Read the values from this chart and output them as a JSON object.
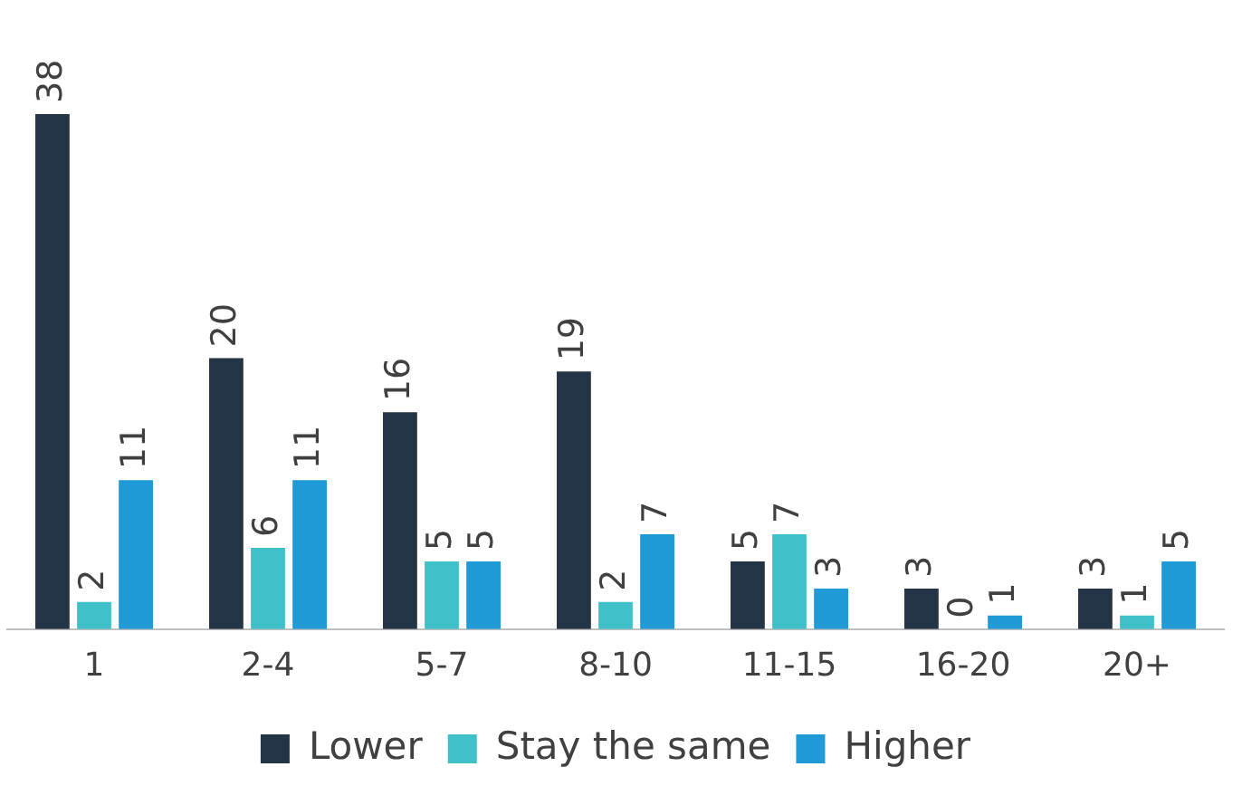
{
  "chart_data": {
    "type": "bar",
    "categories": [
      "1",
      "2-4",
      "5-7",
      "8-10",
      "11-15",
      "16-20",
      "20+"
    ],
    "series": [
      {
        "name": "Lower",
        "color": "#243447",
        "values": [
          38,
          20,
          16,
          19,
          5,
          3,
          3
        ]
      },
      {
        "name": "Stay the same",
        "color": "#40c0c8",
        "values": [
          2,
          6,
          5,
          2,
          7,
          0,
          1
        ]
      },
      {
        "name": "Higher",
        "color": "#1f9ad6",
        "values": [
          11,
          11,
          5,
          7,
          3,
          1,
          5
        ]
      }
    ],
    "data_labels": true,
    "grid": false,
    "legend": "bottom",
    "tick_labels": "x"
  }
}
